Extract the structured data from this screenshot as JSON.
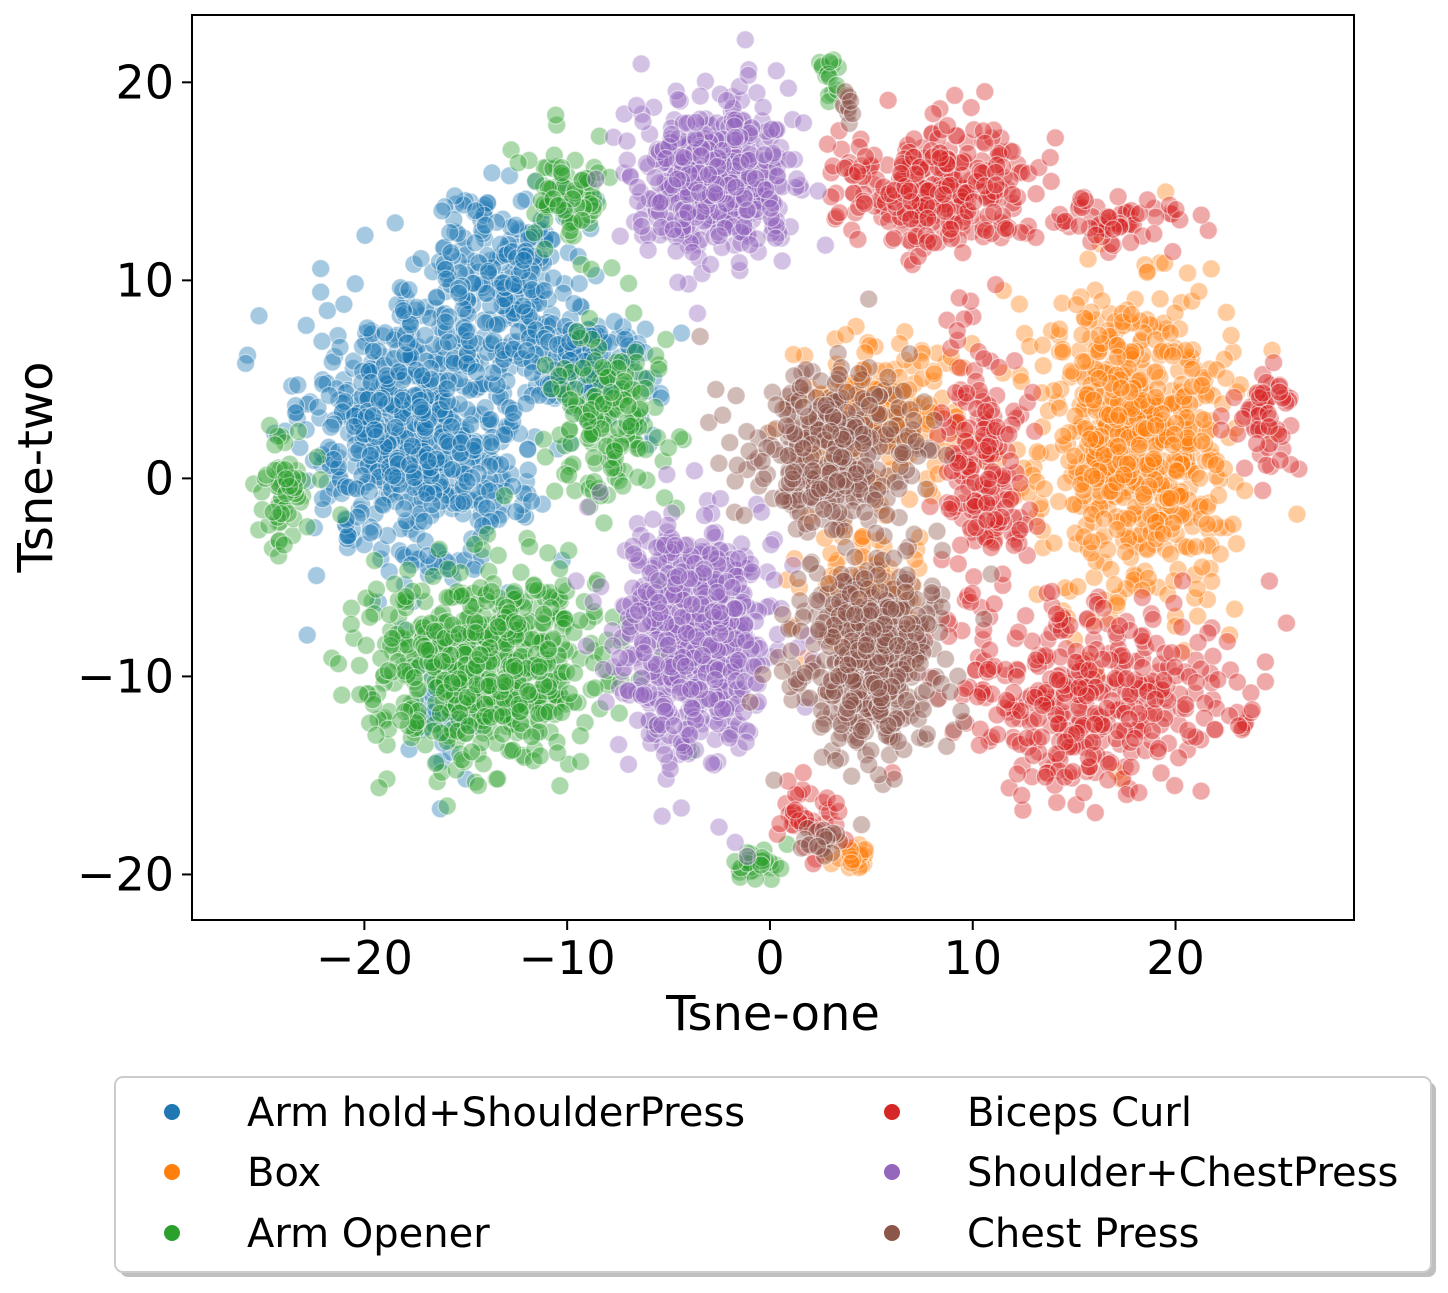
{
  "chart_data": {
    "type": "scatter",
    "title": "",
    "xlabel": "Tsne-one",
    "ylabel": "Tsne-two",
    "xlim": [
      -28.5,
      28.8
    ],
    "ylim": [
      -22.3,
      23.4
    ],
    "xticks": [
      -20,
      -10,
      0,
      10,
      20
    ],
    "yticks": [
      -20,
      -10,
      0,
      10,
      20
    ],
    "xtick_labels": [
      "−20",
      "−10",
      "0",
      "10",
      "20"
    ],
    "ytick_labels": [
      "−20",
      "−10",
      "0",
      "10",
      "20"
    ],
    "grid": false,
    "legend_placement": "bottom-center (below plot, 2 columns)",
    "point_opacity": 0.4,
    "series": [
      {
        "name": "Arm hold+ShoulderPress",
        "color": "#1f77b4",
        "clusters": [
          {
            "center": [
              -17.5,
              2.0
            ],
            "spread": [
              4.5,
              5.5
            ],
            "n": 700
          },
          {
            "center": [
              -13.0,
              10.0
            ],
            "spread": [
              3.0,
              4.0
            ],
            "n": 250
          },
          {
            "center": [
              -9.0,
              6.0
            ],
            "spread": [
              2.5,
              2.5
            ],
            "n": 150
          },
          {
            "center": [
              -16.0,
              -12.0
            ],
            "spread": [
              1.5,
              3.0
            ],
            "n": 40
          }
        ]
      },
      {
        "name": "Box",
        "color": "#ff7f0e",
        "clusters": [
          {
            "center": [
              18.0,
              2.0
            ],
            "spread": [
              4.0,
              7.0
            ],
            "n": 650
          },
          {
            "center": [
              5.5,
              3.5
            ],
            "spread": [
              3.0,
              3.0
            ],
            "n": 200
          },
          {
            "center": [
              4.5,
              -6.0
            ],
            "spread": [
              2.5,
              3.0
            ],
            "n": 90
          },
          {
            "center": [
              4.0,
              -19.0
            ],
            "spread": [
              1.0,
              0.6
            ],
            "n": 25
          }
        ]
      },
      {
        "name": "Arm Opener",
        "color": "#2ca02c",
        "clusters": [
          {
            "center": [
              -14.0,
              -9.5
            ],
            "spread": [
              5.0,
              3.8
            ],
            "n": 650
          },
          {
            "center": [
              -10.0,
              14.5
            ],
            "spread": [
              1.5,
              2.5
            ],
            "n": 80
          },
          {
            "center": [
              -8.0,
              3.0
            ],
            "spread": [
              2.2,
              4.0
            ],
            "n": 160
          },
          {
            "center": [
              -24.0,
              -1.0
            ],
            "spread": [
              1.2,
              2.2
            ],
            "n": 60
          },
          {
            "center": [
              -0.8,
              -19.5
            ],
            "spread": [
              1.2,
              0.6
            ],
            "n": 30
          },
          {
            "center": [
              3.0,
              20.0
            ],
            "spread": [
              0.6,
              1.2
            ],
            "n": 15
          }
        ]
      },
      {
        "name": "Biceps Curl",
        "color": "#d62728",
        "clusters": [
          {
            "center": [
              8.5,
              14.5
            ],
            "spread": [
              4.0,
              2.8
            ],
            "n": 300
          },
          {
            "center": [
              16.0,
              -11.0
            ],
            "spread": [
              6.0,
              4.0
            ],
            "n": 400
          },
          {
            "center": [
              10.5,
              1.0
            ],
            "spread": [
              1.8,
              5.5
            ],
            "n": 180
          },
          {
            "center": [
              24.5,
              3.0
            ],
            "spread": [
              1.2,
              2.5
            ],
            "n": 60
          },
          {
            "center": [
              17.0,
              13.0
            ],
            "spread": [
              3.0,
              1.0
            ],
            "n": 60
          },
          {
            "center": [
              2.0,
              -17.0
            ],
            "spread": [
              1.5,
              1.5
            ],
            "n": 40
          }
        ]
      },
      {
        "name": "Shoulder+ChestPress",
        "color": "#9467bd",
        "clusters": [
          {
            "center": [
              -2.8,
              15.2
            ],
            "spread": [
              3.3,
              3.2
            ],
            "n": 500
          },
          {
            "center": [
              -3.8,
              -8.0
            ],
            "spread": [
              3.2,
              5.0
            ],
            "n": 600
          }
        ]
      },
      {
        "name": "Chest Press",
        "color": "#8c564b",
        "clusters": [
          {
            "center": [
              3.0,
              1.5
            ],
            "spread": [
              3.5,
              3.5
            ],
            "n": 350
          },
          {
            "center": [
              5.0,
              -9.0
            ],
            "spread": [
              3.0,
              4.0
            ],
            "n": 500
          },
          {
            "center": [
              3.8,
              19.0
            ],
            "spread": [
              0.4,
              0.8
            ],
            "n": 10
          },
          {
            "center": [
              2.2,
              -18.5
            ],
            "spread": [
              1.0,
              0.8
            ],
            "n": 20
          }
        ]
      }
    ]
  }
}
